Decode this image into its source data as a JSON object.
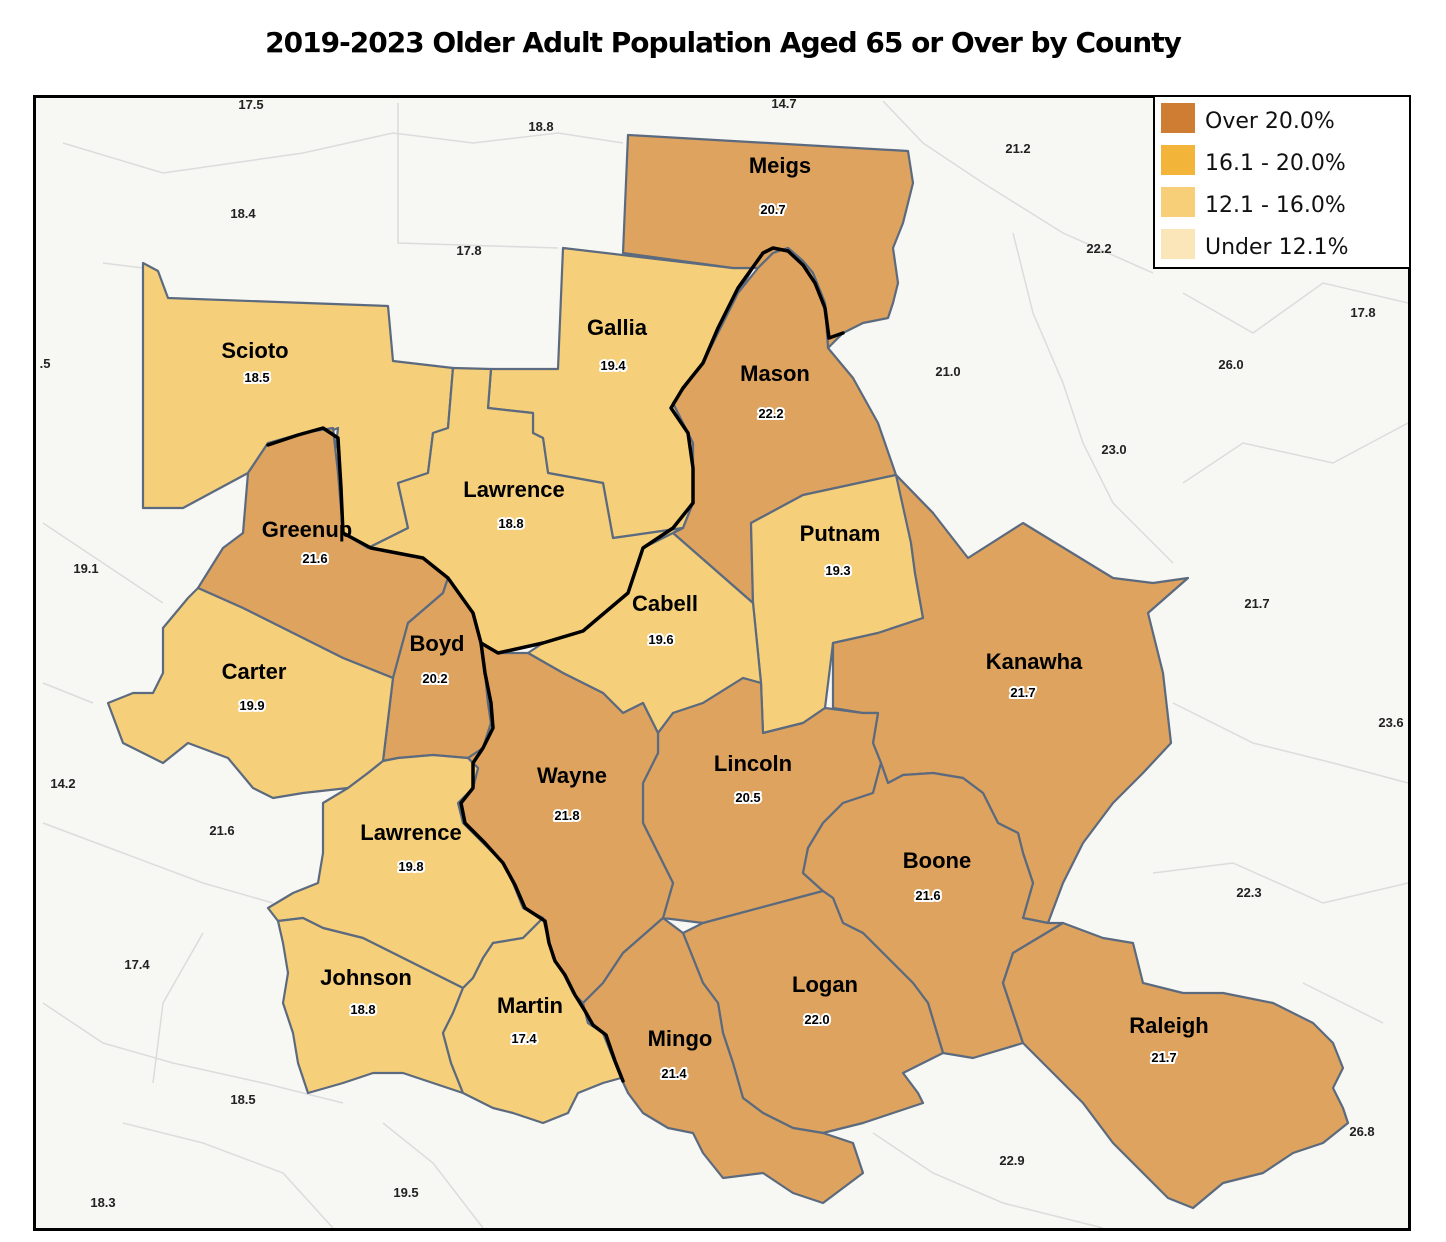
{
  "title": "2019-2023 Older Adult Population Aged 65 or Over by County",
  "colors": {
    "over_20": "#cf7d32",
    "c16_20": "#f3b43a",
    "c12_16": "#f7cf78",
    "under_12": "#fbe6b9",
    "map_fill_high": "#dea35e",
    "map_fill_mid": "#f6cf7a",
    "river": "#000000",
    "border": "#5b6a7e",
    "background": "#f7f7f4"
  },
  "legend": {
    "items": [
      {
        "label": "Over 20.0%",
        "color": "#cf7d32"
      },
      {
        "label": "16.1 - 20.0%",
        "color": "#f3b43a"
      },
      {
        "label": "12.1 - 16.0%",
        "color": "#f7cf78"
      },
      {
        "label": "Under 12.1%",
        "color": "#fbe6b9"
      }
    ]
  },
  "counties": [
    {
      "name": "Meigs",
      "value": "20.7"
    },
    {
      "name": "Gallia",
      "value": "19.4"
    },
    {
      "name": "Scioto",
      "value": "18.5"
    },
    {
      "name": "Mason",
      "value": "22.2"
    },
    {
      "name": "Lawrence",
      "value": "18.8"
    },
    {
      "name": "Greenup",
      "value": "21.6"
    },
    {
      "name": "Putnam",
      "value": "19.3"
    },
    {
      "name": "Cabell",
      "value": "19.6"
    },
    {
      "name": "Boyd",
      "value": "20.2"
    },
    {
      "name": "Carter",
      "value": "19.9"
    },
    {
      "name": "Kanawha",
      "value": "21.7"
    },
    {
      "name": "Wayne",
      "value": "21.8"
    },
    {
      "name": "Lincoln",
      "value": "20.5"
    },
    {
      "name": "Lawrence",
      "value": "19.8"
    },
    {
      "name": "Boone",
      "value": "21.6"
    },
    {
      "name": "Johnson",
      "value": "18.8"
    },
    {
      "name": "Martin",
      "value": "17.4"
    },
    {
      "name": "Logan",
      "value": "22.0"
    },
    {
      "name": "Mingo",
      "value": "21.4"
    },
    {
      "name": "Raleigh",
      "value": "21.7"
    }
  ],
  "other_values": [
    "17.5",
    "14.7",
    "18.8",
    "21.2",
    "18.4",
    "17.8",
    "22.2",
    "17.8",
    "26.0",
    "21.0",
    "23.0",
    "19.1",
    "21.7",
    "23.6",
    "14.2",
    "21.6",
    "22.3",
    "17.4",
    "26.8",
    "18.5",
    "22.9",
    "19.5",
    "18.3",
    ".5"
  ]
}
